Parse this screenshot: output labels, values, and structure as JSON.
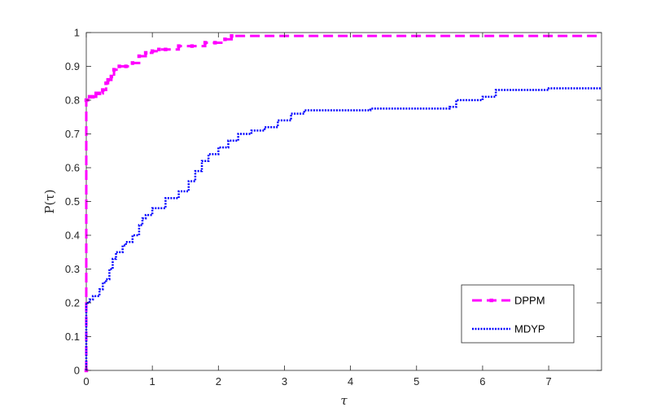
{
  "chart_data": {
    "type": "line",
    "title": "",
    "xlabel": "τ",
    "ylabel": "P(τ)",
    "xlim": [
      0,
      7.8
    ],
    "ylim": [
      0,
      1
    ],
    "xticks": [
      0,
      1,
      2,
      3,
      4,
      5,
      6,
      7
    ],
    "yticks": [
      0,
      0.1,
      0.2,
      0.3,
      0.4,
      0.5,
      0.6,
      0.7,
      0.8,
      0.9,
      1
    ],
    "ytick_labels": [
      "0",
      "0.1",
      "0.2",
      "0.3",
      "0.4",
      "0.5",
      "0.6",
      "0.7",
      "0.8",
      "0.9",
      "1"
    ],
    "grid": false,
    "legend_position": "bottom-right",
    "series": [
      {
        "name": "DPPM",
        "color": "#ff00ff",
        "style": "dashed-markers",
        "x": [
          0,
          0,
          0.05,
          0.1,
          0.15,
          0.2,
          0.25,
          0.3,
          0.33,
          0.38,
          0.42,
          0.5,
          0.6,
          0.7,
          0.8,
          0.9,
          1.0,
          1.1,
          1.2,
          1.4,
          1.6,
          1.8,
          1.95,
          2.1,
          2.2,
          7.8
        ],
        "y": [
          0,
          0.8,
          0.81,
          0.81,
          0.82,
          0.82,
          0.83,
          0.85,
          0.86,
          0.87,
          0.89,
          0.9,
          0.9,
          0.91,
          0.93,
          0.94,
          0.945,
          0.95,
          0.95,
          0.96,
          0.96,
          0.97,
          0.97,
          0.98,
          0.99,
          0.99
        ]
      },
      {
        "name": "MDYP",
        "color": "#0000ff",
        "style": "dotted",
        "x": [
          0,
          0,
          0.05,
          0.1,
          0.15,
          0.2,
          0.25,
          0.3,
          0.35,
          0.4,
          0.45,
          0.5,
          0.55,
          0.6,
          0.7,
          0.8,
          0.85,
          0.9,
          1.0,
          1.2,
          1.4,
          1.55,
          1.65,
          1.75,
          1.85,
          2.0,
          2.15,
          2.3,
          2.5,
          2.7,
          2.9,
          3.1,
          3.3,
          4.0,
          4.3,
          5.0,
          5.5,
          5.6,
          5.9,
          6.0,
          6.2,
          6.5,
          7.0,
          7.8
        ],
        "y": [
          0,
          0.2,
          0.21,
          0.22,
          0.22,
          0.24,
          0.26,
          0.27,
          0.3,
          0.33,
          0.35,
          0.35,
          0.37,
          0.38,
          0.4,
          0.43,
          0.45,
          0.46,
          0.48,
          0.51,
          0.53,
          0.56,
          0.59,
          0.62,
          0.64,
          0.66,
          0.68,
          0.7,
          0.71,
          0.72,
          0.74,
          0.76,
          0.77,
          0.77,
          0.775,
          0.775,
          0.78,
          0.8,
          0.8,
          0.81,
          0.83,
          0.83,
          0.835,
          0.835
        ]
      }
    ]
  }
}
